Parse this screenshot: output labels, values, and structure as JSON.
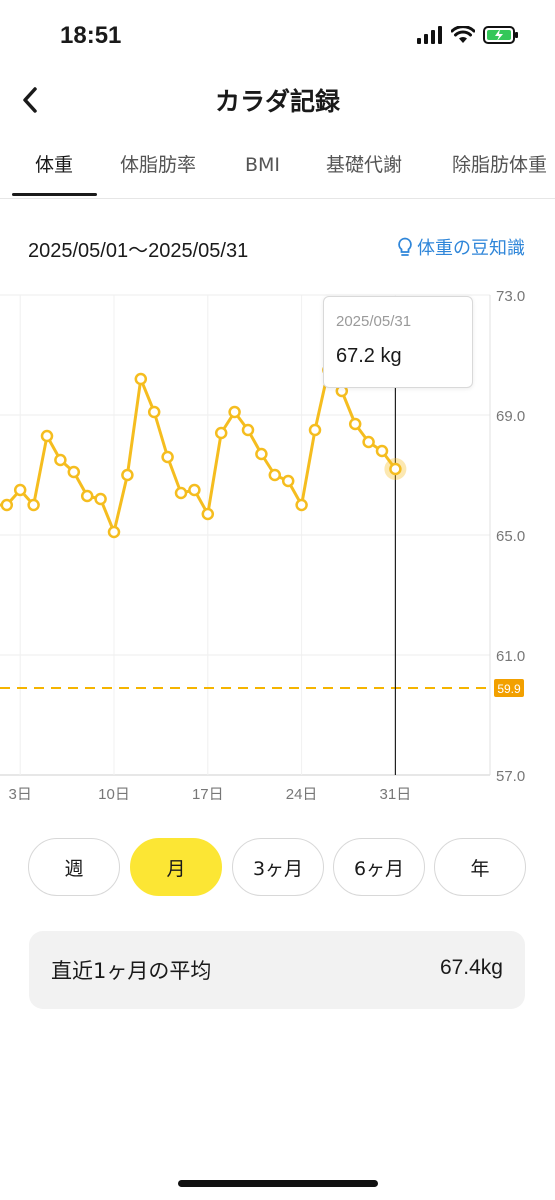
{
  "status_bar": {
    "time": "18:51"
  },
  "nav": {
    "title": "カラダ記録"
  },
  "tabs": [
    {
      "label": "体重",
      "active": true
    },
    {
      "label": "体脂肪率"
    },
    {
      "label": "BMI"
    },
    {
      "label": "基礎代謝"
    },
    {
      "label": "除脂肪体重"
    }
  ],
  "date_range": "2025/05/01〜2025/05/31",
  "tips_link": "体重の豆知識",
  "tooltip": {
    "date": "2025/05/31",
    "value": "67.2 kg"
  },
  "colors": {
    "accent": "#f5bd1f",
    "selected_button": "#fce634",
    "link": "#2f86d9",
    "target_badge": "#f2a000"
  },
  "chart_data": {
    "type": "line",
    "y_axis_position": "right",
    "ylim": [
      57.0,
      73.0
    ],
    "y_ticks": [
      "73.0",
      "69.0",
      "65.0",
      "61.0",
      "57.0"
    ],
    "x_ticks": [
      {
        "day": 3,
        "label": "3日"
      },
      {
        "day": 10,
        "label": "10日"
      },
      {
        "day": 17,
        "label": "17日"
      },
      {
        "day": 24,
        "label": "24日"
      },
      {
        "day": 31,
        "label": "31日"
      }
    ],
    "target_line": {
      "value": 59.9,
      "label": "59.9"
    },
    "highlight_day": 31,
    "grid": true,
    "series": [
      {
        "x": [
          1,
          2,
          3,
          4,
          5,
          6,
          7,
          8,
          9,
          10,
          11,
          12,
          13,
          14,
          15,
          16,
          17,
          18,
          19,
          20,
          21,
          22,
          23,
          24,
          25,
          26,
          27,
          28,
          29,
          30,
          31
        ],
        "y": [
          66.0,
          66.0,
          66.5,
          66.0,
          68.3,
          67.5,
          67.1,
          66.3,
          66.2,
          65.1,
          67.0,
          70.2,
          69.1,
          67.6,
          66.4,
          66.5,
          65.7,
          68.4,
          69.1,
          68.5,
          67.7,
          67.0,
          66.8,
          66.0,
          68.5,
          70.5,
          69.8,
          68.7,
          68.1,
          67.8,
          67.2
        ]
      }
    ]
  },
  "periods": [
    {
      "label": "週"
    },
    {
      "label": "月",
      "active": true
    },
    {
      "label": "3ヶ月"
    },
    {
      "label": "6ヶ月"
    },
    {
      "label": "年"
    }
  ],
  "average": {
    "label": "直近1ヶ月の平均",
    "value": "67.4kg"
  }
}
